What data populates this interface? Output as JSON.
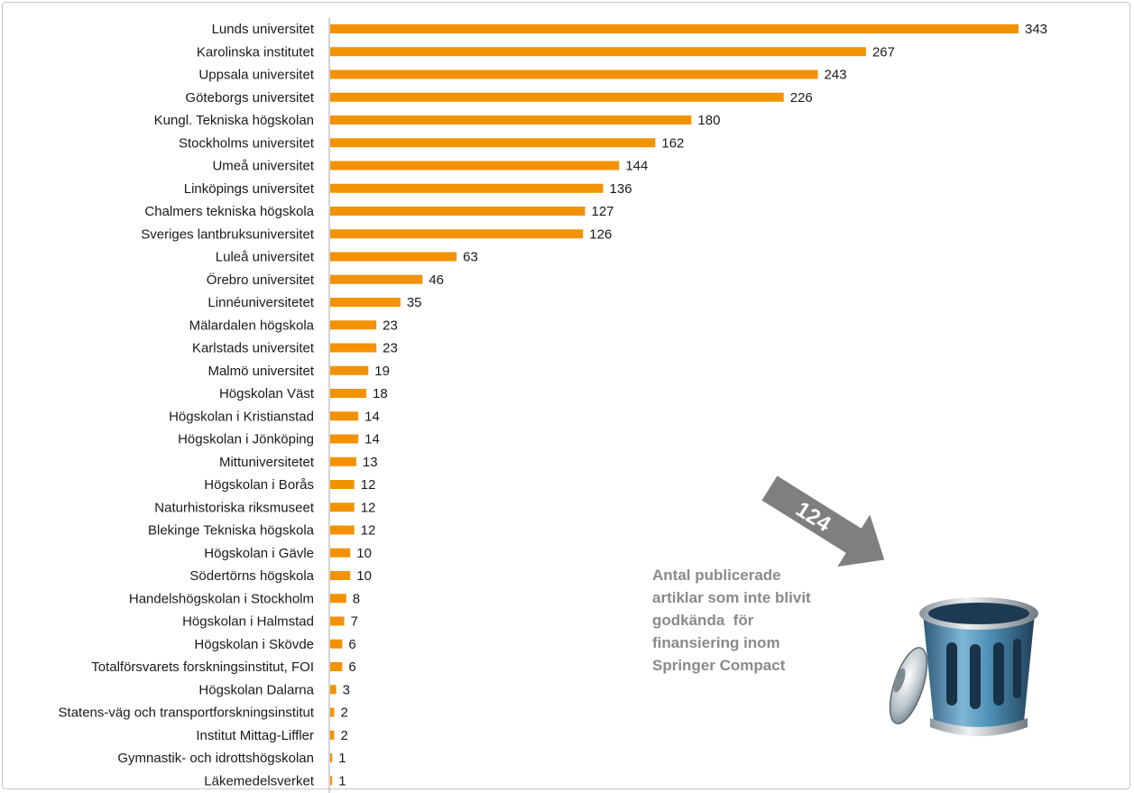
{
  "chart_data": {
    "type": "bar",
    "orientation": "horizontal",
    "categories": [
      "Lunds universitet",
      "Karolinska institutet",
      "Uppsala universitet",
      "Göteborgs universitet",
      "Kungl. Tekniska högskolan",
      "Stockholms universitet",
      "Umeå universitet",
      "Linköpings universitet",
      "Chalmers tekniska högskola",
      "Sveriges lantbruksuniversitet",
      "Luleå universitet",
      "Örebro universitet",
      "Linnéuniversitetet",
      "Mälardalen högskola",
      "Karlstads universitet",
      "Malmö universitet",
      "Högskolan Väst",
      "Högskolan i Kristianstad",
      "Högskolan i Jönköping",
      "Mittuniversitetet",
      "Högskolan i Borås",
      "Naturhistoriska riksmuseet",
      "Blekinge Tekniska högskola",
      "Högskolan i Gävle",
      "Södertörns högskola",
      "Handelshögskolan i Stockholm",
      "Högskolan i Halmstad",
      "Högskolan i Skövde",
      "Totalförsvarets forskningsinstitut, FOI",
      "Högskolan Dalarna",
      "Statens-väg och transportforskningsinstitut",
      "Institut Mittag-Liffler",
      "Gymnastik- och idrottshögskolan",
      "Läkemedelsverket"
    ],
    "values": [
      343,
      267,
      243,
      226,
      180,
      162,
      144,
      136,
      127,
      126,
      63,
      46,
      35,
      23,
      23,
      19,
      18,
      14,
      14,
      13,
      12,
      12,
      12,
      10,
      10,
      8,
      7,
      6,
      6,
      3,
      2,
      2,
      1,
      1
    ],
    "bar_color": "#f39200",
    "xlim": [
      0,
      343
    ],
    "grid": false,
    "legend": "none",
    "data_labels": true
  },
  "annotation": {
    "arrow_number": "124",
    "arrow_color": "#7f7f7f",
    "text_lines": [
      "Antal publicerade",
      "artiklar som inte blivit",
      "godkända  för",
      "finansiering inom",
      "Springer Compact"
    ],
    "text_color": "#8a8a8a",
    "icon": "trash-can-icon"
  }
}
